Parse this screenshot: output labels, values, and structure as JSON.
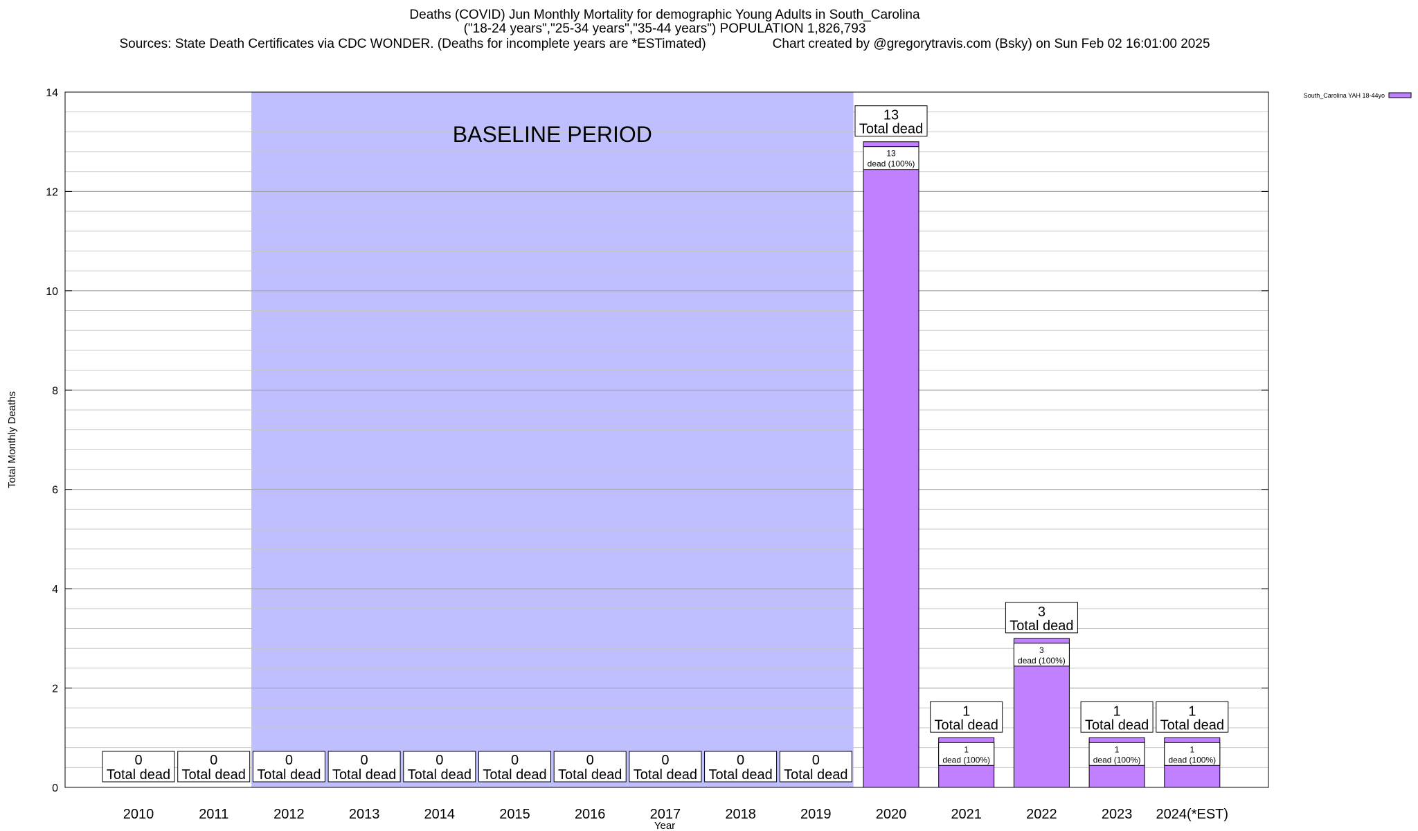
{
  "chart_data": {
    "type": "bar",
    "title": "Deaths (COVID) Jun Monthly Mortality for demographic Young Adults in South_Carolina",
    "subtitle": "(\"18-24 years\",\"25-34 years\",\"35-44 years\") POPULATION 1,826,793",
    "sources": "Sources: State Death Certificates via CDC WONDER. (Deaths for incomplete years are *ESTimated)",
    "credit": "Chart created by @gregorytravis.com (Bsky) on Sun Feb 02 16:01:00 2025",
    "xlabel": "Year",
    "ylabel": "Total Monthly Deaths",
    "ylim": [
      0,
      14
    ],
    "yticks": [
      0,
      2,
      4,
      6,
      8,
      10,
      12,
      14
    ],
    "grid": true,
    "legend_position": "top-right",
    "categories": [
      "2010",
      "2011",
      "2012",
      "2013",
      "2014",
      "2015",
      "2016",
      "2017",
      "2018",
      "2019",
      "2020",
      "2021",
      "2022",
      "2023",
      "2024(*EST)"
    ],
    "series": [
      {
        "name": "South_Carolina YAH 18-44yo",
        "color": "#c080ff",
        "values": [
          0,
          0,
          0,
          0,
          0,
          0,
          0,
          0,
          0,
          0,
          13,
          1,
          3,
          1,
          1
        ]
      }
    ],
    "total_label_word": "Total dead",
    "bar_label_suffix": "dead (100%)",
    "baseline": {
      "label": "BASELINE PERIOD",
      "from": "2012",
      "to": "2019",
      "color": "#bfbfff"
    }
  }
}
